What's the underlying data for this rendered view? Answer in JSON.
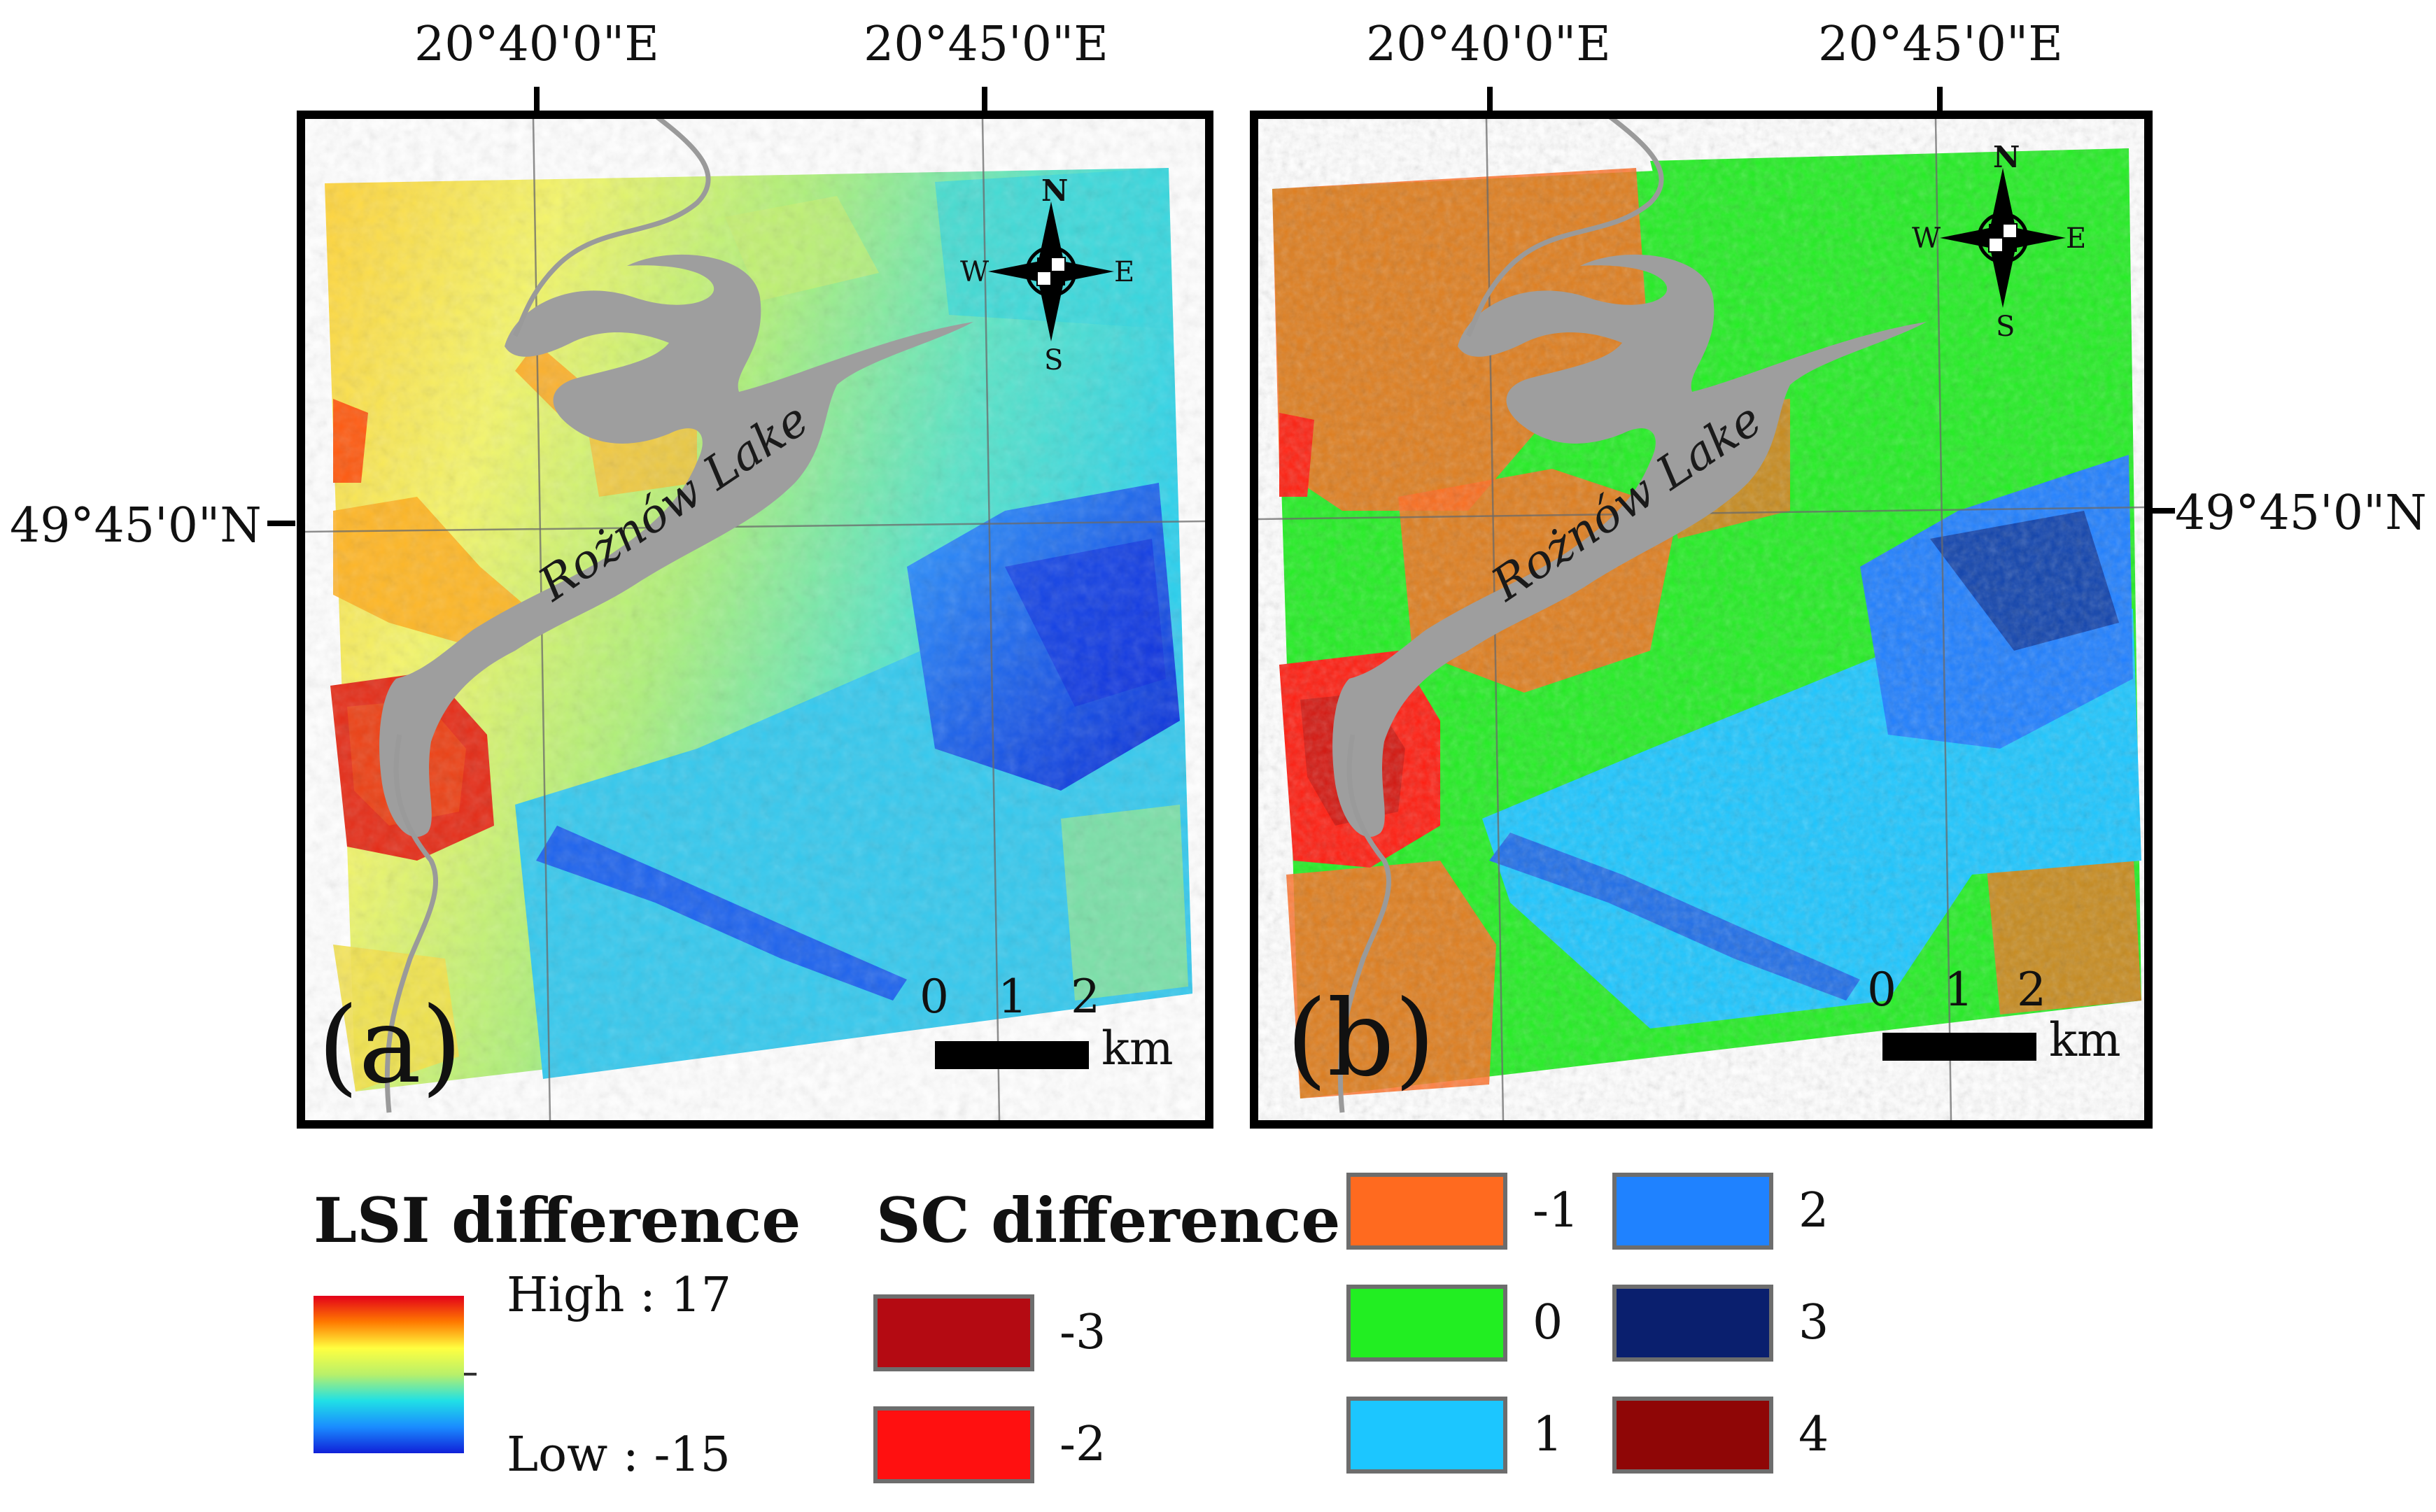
{
  "panels": [
    {
      "label": "(a)",
      "longitude_labels": [
        "20°40'0\"E",
        "20°45'0\"E"
      ],
      "latitude_label": "49°45'0\"N",
      "lake_label": "Rożnów Lake",
      "compass": {
        "N": "N",
        "S": "S",
        "E": "E",
        "W": "W"
      },
      "scale": {
        "ticks": [
          "0",
          "1",
          "2"
        ],
        "unit": "km"
      }
    },
    {
      "label": "(b)",
      "longitude_labels": [
        "20°40'0\"E",
        "20°45'0\"E"
      ],
      "latitude_label": "49°45'0\"N",
      "lake_label": "Rożnów Lake",
      "compass": {
        "N": "N",
        "S": "S",
        "E": "E",
        "W": "W"
      },
      "scale": {
        "ticks": [
          "0",
          "1",
          "2"
        ],
        "unit": "km"
      }
    }
  ],
  "legend_lsi": {
    "title": "LSI difference",
    "high": "High : 17",
    "low": "Low : -15",
    "gradient_colors": [
      "#e3001a",
      "#ff7a00",
      "#ffff40",
      "#b8f06a",
      "#20e0e6",
      "#1a8cff",
      "#1020d8"
    ]
  },
  "legend_sc": {
    "title": "SC difference",
    "classes": [
      {
        "value": "-3",
        "color": "#b40a12"
      },
      {
        "value": "-2",
        "color": "#ff1010"
      },
      {
        "value": "-1",
        "color": "#ff6a1f"
      },
      {
        "value": "0",
        "color": "#22ee22"
      },
      {
        "value": "1",
        "color": "#1cc6ff"
      },
      {
        "value": "2",
        "color": "#1f82ff"
      },
      {
        "value": "3",
        "color": "#0a1f6e"
      },
      {
        "value": "4",
        "color": "#8f0606"
      }
    ]
  },
  "colors": {
    "lake": "#9e9e9e",
    "river": "#9a9a9a",
    "frame": "#000000"
  }
}
